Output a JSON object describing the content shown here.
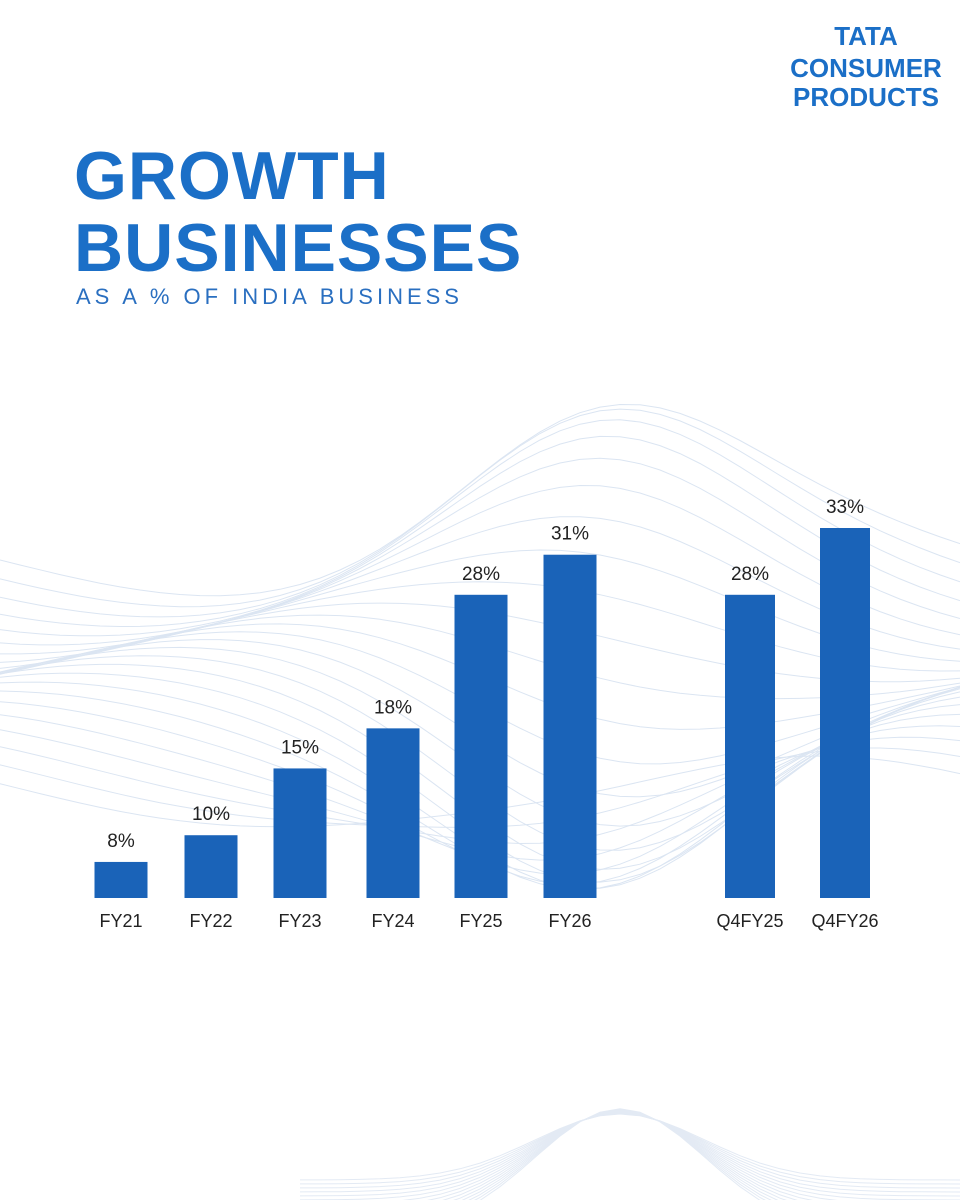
{
  "brand": [
    "TATA",
    "CONSUMER",
    "PRODUCTS"
  ],
  "chart_data": {
    "type": "bar",
    "title": "GROWTH BUSINESSES",
    "subtitle": "AS A % OF INDIA BUSINESS",
    "categories": [
      "FY21",
      "FY22",
      "FY23",
      "FY24",
      "FY25",
      "FY26",
      "Q4FY25",
      "Q4FY26"
    ],
    "values": [
      8,
      10,
      15,
      18,
      28,
      31,
      28,
      33
    ],
    "value_labels": [
      "8%",
      "10%",
      "15%",
      "18%",
      "28%",
      "31%",
      "28%",
      "33%"
    ],
    "color": "#1a63b8",
    "ylim": [
      5.3,
      33
    ]
  }
}
